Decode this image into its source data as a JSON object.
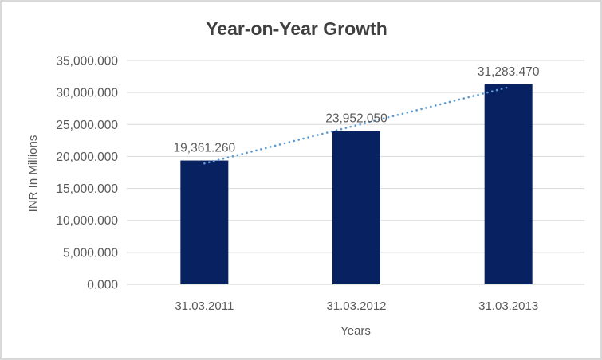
{
  "chart_data": {
    "type": "bar",
    "title": "Year-on-Year Growth",
    "xlabel": "Years",
    "ylabel": "INR In Millions",
    "categories": [
      "31.03.2011",
      "31.03.2012",
      "31.03.2013"
    ],
    "values": [
      19361.26,
      23952.05,
      31283.47
    ],
    "data_labels": [
      "19,361.260",
      "23,952.050",
      "31,283.470"
    ],
    "ylim": [
      0,
      35000
    ],
    "ytick_step": 5000,
    "ytick_labels": [
      "0.000",
      "5,000.000",
      "10,000.000",
      "15,000.000",
      "20,000.000",
      "25,000.000",
      "30,000.000",
      "35,000.000"
    ],
    "grid": true,
    "legend_position": "none",
    "trendline": {
      "type": "linear",
      "style": "dotted"
    },
    "colors": {
      "bar": "#082261",
      "trendline": "#5B9BD5",
      "gridline": "#D9D9D9",
      "axis_line": "#D2D2D2",
      "title_text": "#404040",
      "tick_text": "#595959",
      "frame_border": "#D9D9D9",
      "background": "#FFFFFF"
    }
  }
}
